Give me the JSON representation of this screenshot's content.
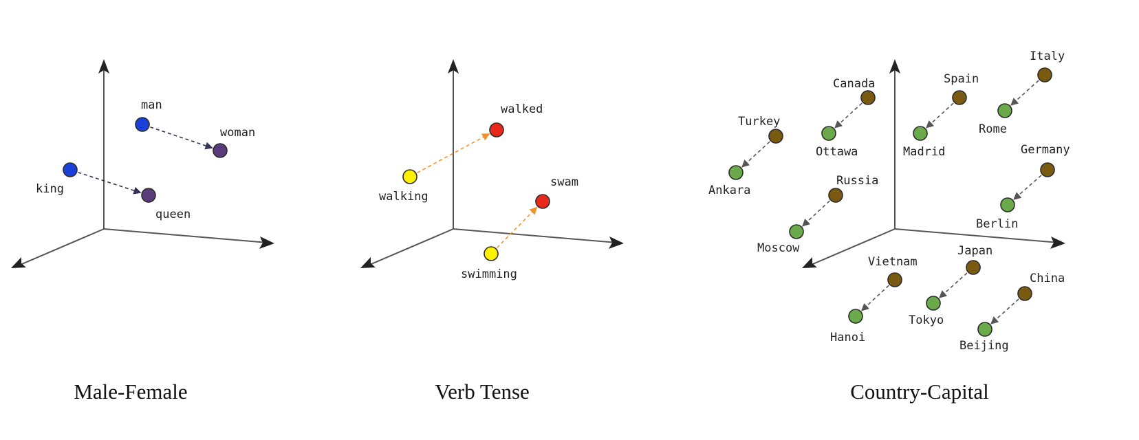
{
  "panels": [
    {
      "id": "male-female",
      "caption": "Male-Female",
      "colors": {
        "source": "#1b3fd9",
        "target": "#5a3c7a",
        "arrow": "#333355"
      },
      "words": [
        {
          "key": "man",
          "label": "man",
          "group": "source"
        },
        {
          "key": "woman",
          "label": "woman",
          "group": "target"
        },
        {
          "key": "king",
          "label": "king",
          "group": "source"
        },
        {
          "key": "queen",
          "label": "queen",
          "group": "target"
        }
      ],
      "relations": [
        {
          "from": "man",
          "to": "woman"
        },
        {
          "from": "king",
          "to": "queen"
        }
      ]
    },
    {
      "id": "verb-tense",
      "caption": "Verb Tense",
      "colors": {
        "source": "#fff200",
        "target": "#e8281a",
        "arrow": "#f0922a"
      },
      "words": [
        {
          "key": "walking",
          "label": "walking",
          "group": "source"
        },
        {
          "key": "walked",
          "label": "walked",
          "group": "target"
        },
        {
          "key": "swimming",
          "label": "swimming",
          "group": "source"
        },
        {
          "key": "swam",
          "label": "swam",
          "group": "target"
        }
      ],
      "relations": [
        {
          "from": "walking",
          "to": "walked"
        },
        {
          "from": "swimming",
          "to": "swam"
        }
      ]
    },
    {
      "id": "country-capital",
      "caption": "Country-Capital",
      "colors": {
        "source": "#7a5a10",
        "target": "#6aaa4a",
        "arrow": "#555555"
      },
      "words": [
        {
          "key": "turkey",
          "label": "Turkey",
          "group": "source"
        },
        {
          "key": "ankara",
          "label": "Ankara",
          "group": "target"
        },
        {
          "key": "canada",
          "label": "Canada",
          "group": "source"
        },
        {
          "key": "ottawa",
          "label": "Ottawa",
          "group": "target"
        },
        {
          "key": "spain",
          "label": "Spain",
          "group": "source"
        },
        {
          "key": "madrid",
          "label": "Madrid",
          "group": "target"
        },
        {
          "key": "italy",
          "label": "Italy",
          "group": "source"
        },
        {
          "key": "rome",
          "label": "Rome",
          "group": "target"
        },
        {
          "key": "germany",
          "label": "Germany",
          "group": "source"
        },
        {
          "key": "berlin",
          "label": "Berlin",
          "group": "target"
        },
        {
          "key": "russia",
          "label": "Russia",
          "group": "source"
        },
        {
          "key": "moscow",
          "label": "Moscow",
          "group": "target"
        },
        {
          "key": "vietnam",
          "label": "Vietnam",
          "group": "source"
        },
        {
          "key": "hanoi",
          "label": "Hanoi",
          "group": "target"
        },
        {
          "key": "japan",
          "label": "Japan",
          "group": "source"
        },
        {
          "key": "tokyo",
          "label": "Tokyo",
          "group": "target"
        },
        {
          "key": "china",
          "label": "China",
          "group": "source"
        },
        {
          "key": "beijing",
          "label": "Beijing",
          "group": "target"
        }
      ],
      "relations": [
        {
          "from": "turkey",
          "to": "ankara"
        },
        {
          "from": "canada",
          "to": "ottawa"
        },
        {
          "from": "spain",
          "to": "madrid"
        },
        {
          "from": "italy",
          "to": "rome"
        },
        {
          "from": "germany",
          "to": "berlin"
        },
        {
          "from": "russia",
          "to": "moscow"
        },
        {
          "from": "vietnam",
          "to": "hanoi"
        },
        {
          "from": "japan",
          "to": "tokyo"
        },
        {
          "from": "china",
          "to": "beijing"
        }
      ]
    }
  ]
}
